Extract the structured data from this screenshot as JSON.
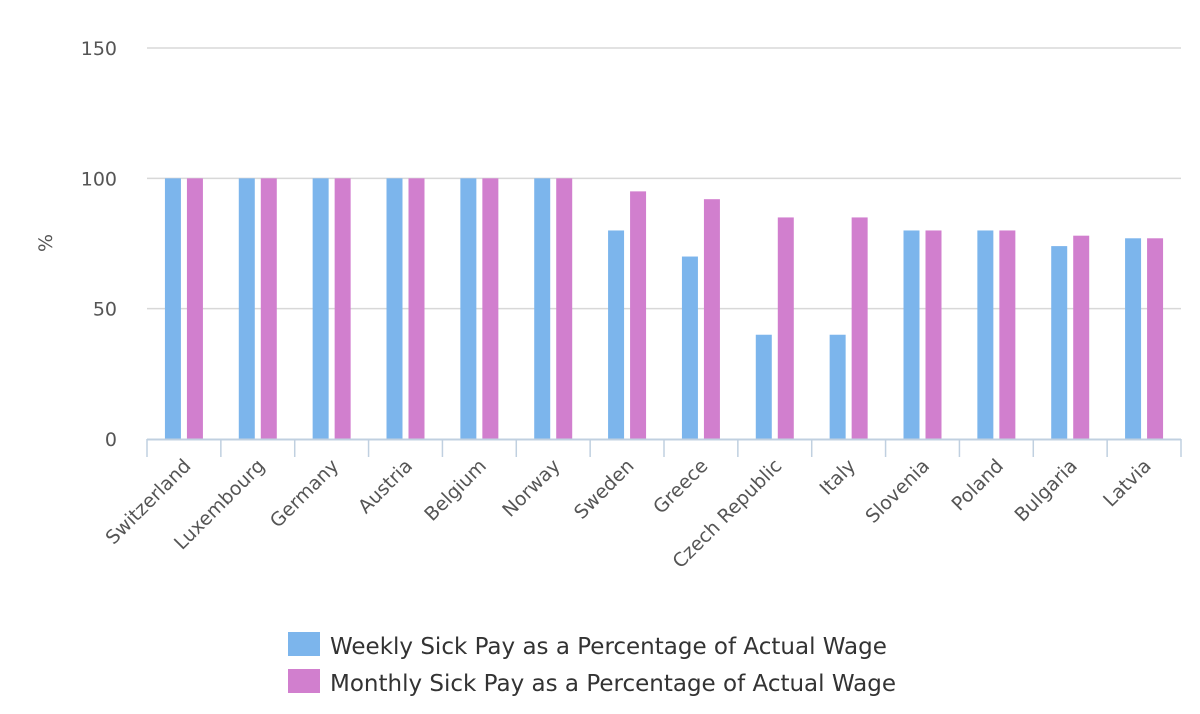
{
  "chart_data": {
    "type": "bar",
    "title": "",
    "xlabel": "",
    "ylabel": "%",
    "ylim": [
      0,
      150
    ],
    "yticks": [
      0,
      50,
      100,
      150
    ],
    "grid": true,
    "legend_position": "bottom",
    "categories": [
      "Switzerland",
      "Luxembourg",
      "Germany",
      "Austria",
      "Belgium",
      "Norway",
      "Sweden",
      "Greece",
      "Czech Republic",
      "Italy",
      "Slovenia",
      "Poland",
      "Bulgaria",
      "Latvia"
    ],
    "series": [
      {
        "name": "Weekly Sick Pay as a Percentage of Actual Wage",
        "color": "#7cb5ec",
        "values": [
          100,
          100,
          100,
          100,
          100,
          100,
          80,
          70,
          40,
          40,
          80,
          80,
          74,
          77
        ]
      },
      {
        "name": "Monthly Sick Pay as a Percentage of Actual Wage",
        "color": "#d17fce",
        "values": [
          100,
          100,
          100,
          100,
          100,
          100,
          95,
          92,
          85,
          85,
          80,
          80,
          78,
          77
        ]
      }
    ],
    "gridline_color": "#d8d8d8",
    "axis_color": "#c0d0e0"
  }
}
